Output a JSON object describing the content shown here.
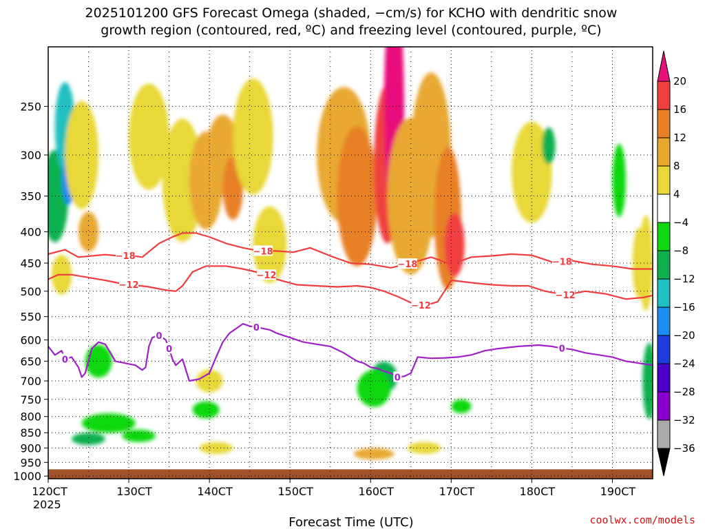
{
  "chart_data": {
    "type": "heatmap",
    "title_line1": "2025101200 GFS Forecast Omega (shaded, −cm/s) for KCHO with dendritic snow",
    "title_line2": "growth region (contoured, red, ºC) and freezing level (contoured, purple, ºC)",
    "xlabel": "Forecast Time (UTC)",
    "credit": "coolwx.com/models",
    "x_ticks": [
      {
        "hour": 0,
        "label": "120CT"
      },
      {
        "hour": 24,
        "label": "130CT"
      },
      {
        "hour": 48,
        "label": "140CT"
      },
      {
        "hour": 72,
        "label": "150CT"
      },
      {
        "hour": 96,
        "label": "160CT"
      },
      {
        "hour": 120,
        "label": "170CT"
      },
      {
        "hour": 144,
        "label": "180CT"
      },
      {
        "hour": 168,
        "label": "190CT"
      }
    ],
    "x_year": "2025",
    "x_range_hours": [
      0,
      180
    ],
    "y_range_hpa": [
      1010,
      200
    ],
    "y_ticks": [
      250,
      300,
      350,
      400,
      450,
      500,
      550,
      600,
      650,
      700,
      750,
      800,
      850,
      900,
      950,
      1000
    ],
    "colorbar": {
      "levels": [
        -36,
        -32,
        -28,
        -24,
        -20,
        -16,
        -12,
        -8,
        -4,
        4,
        8,
        12,
        16,
        20
      ],
      "labels": [
        "20",
        "16",
        "12",
        "8",
        "4",
        "−4",
        "−8",
        "−12",
        "−16",
        "−20",
        "−24",
        "−28",
        "−32",
        "−36"
      ],
      "colors": [
        "#000000",
        "#aaaaaa",
        "#8800cc",
        "#4a00c8",
        "#1c3cdc",
        "#1c8cf0",
        "#20c0c0",
        "#10b050",
        "#10d810",
        "#ffffff",
        "#e8d838",
        "#e8a830",
        "#e88028",
        "#f04040",
        "#e8107a"
      ]
    },
    "ground": {
      "from_hpa": 975,
      "to_hpa": 1010,
      "color": "#a0522d"
    },
    "omega_blobs": [
      {
        "x": 2,
        "p": 350,
        "w": 4,
        "h": 120,
        "v": -10
      },
      {
        "x": 5,
        "p": 270,
        "w": 3,
        "h": 90,
        "v": -14
      },
      {
        "x": 6,
        "p": 330,
        "w": 2,
        "h": 60,
        "v": -18
      },
      {
        "x": 4,
        "p": 470,
        "w": 3,
        "h": 70,
        "v": 6
      },
      {
        "x": 10,
        "p": 300,
        "w": 5,
        "h": 120,
        "v": 6
      },
      {
        "x": 12,
        "p": 400,
        "w": 3,
        "h": 60,
        "v": 10
      },
      {
        "x": 15,
        "p": 650,
        "w": 4,
        "h": 80,
        "v": -6
      },
      {
        "x": 12,
        "p": 870,
        "w": 5,
        "h": 40,
        "v": -10
      },
      {
        "x": 18,
        "p": 820,
        "w": 8,
        "h": 60,
        "v": -6
      },
      {
        "x": 27,
        "p": 860,
        "w": 5,
        "h": 40,
        "v": -8
      },
      {
        "x": 30,
        "p": 280,
        "w": 6,
        "h": 110,
        "v": 5
      },
      {
        "x": 40,
        "p": 330,
        "w": 6,
        "h": 150,
        "v": 6
      },
      {
        "x": 47,
        "p": 330,
        "w": 5,
        "h": 120,
        "v": 10
      },
      {
        "x": 52,
        "p": 300,
        "w": 5,
        "h": 90,
        "v": 8
      },
      {
        "x": 55,
        "p": 340,
        "w": 3,
        "h": 80,
        "v": 14
      },
      {
        "x": 48,
        "p": 700,
        "w": 4,
        "h": 60,
        "v": 6
      },
      {
        "x": 47,
        "p": 780,
        "w": 4,
        "h": 50,
        "v": -6
      },
      {
        "x": 50,
        "p": 900,
        "w": 5,
        "h": 40,
        "v": 6
      },
      {
        "x": 61,
        "p": 280,
        "w": 6,
        "h": 120,
        "v": 5
      },
      {
        "x": 66,
        "p": 420,
        "w": 5,
        "h": 120,
        "v": 5
      },
      {
        "x": 88,
        "p": 300,
        "w": 8,
        "h": 150,
        "v": 8
      },
      {
        "x": 92,
        "p": 350,
        "w": 6,
        "h": 180,
        "v": 12
      },
      {
        "x": 101,
        "p": 310,
        "w": 4,
        "h": 180,
        "v": 18
      },
      {
        "x": 103,
        "p": 250,
        "w": 3,
        "h": 200,
        "v": 22
      },
      {
        "x": 108,
        "p": 350,
        "w": 7,
        "h": 200,
        "v": 10
      },
      {
        "x": 114,
        "p": 300,
        "w": 6,
        "h": 180,
        "v": 10
      },
      {
        "x": 119,
        "p": 380,
        "w": 4,
        "h": 200,
        "v": 12
      },
      {
        "x": 121,
        "p": 420,
        "w": 3,
        "h": 100,
        "v": 18
      },
      {
        "x": 100,
        "p": 690,
        "w": 4,
        "h": 80,
        "v": -10
      },
      {
        "x": 97,
        "p": 720,
        "w": 5,
        "h": 100,
        "v": -6
      },
      {
        "x": 97,
        "p": 920,
        "w": 6,
        "h": 40,
        "v": 8
      },
      {
        "x": 112,
        "p": 900,
        "w": 5,
        "h": 40,
        "v": 6
      },
      {
        "x": 123,
        "p": 770,
        "w": 3,
        "h": 40,
        "v": -6
      },
      {
        "x": 144,
        "p": 320,
        "w": 6,
        "h": 120,
        "v": 5
      },
      {
        "x": 149,
        "p": 290,
        "w": 2,
        "h": 40,
        "v": -10
      },
      {
        "x": 170,
        "p": 330,
        "w": 2,
        "h": 90,
        "v": -6
      },
      {
        "x": 176,
        "p": 450,
        "w": 2,
        "h": 120,
        "v": 6
      },
      {
        "x": 178,
        "p": 450,
        "w": 2,
        "h": 160,
        "v": 6
      },
      {
        "x": 179,
        "p": 700,
        "w": 2,
        "h": 200,
        "v": -12
      }
    ],
    "contours": [
      {
        "name": "dgz-minus-18",
        "value": -18,
        "color": "#f03c3c",
        "hours": [
          0,
          5,
          9,
          13,
          17,
          21,
          24,
          28,
          33,
          37,
          40,
          44,
          48,
          53,
          58,
          63,
          68,
          73,
          78,
          84,
          90,
          96,
          102,
          108,
          114,
          120,
          126,
          132,
          138,
          144,
          150,
          156,
          162,
          168,
          174,
          180
        ],
        "hpa": [
          435,
          428,
          440,
          438,
          436,
          438,
          437,
          440,
          418,
          408,
          402,
          402,
          408,
          418,
          425,
          430,
          430,
          432,
          425,
          438,
          450,
          452,
          458,
          450,
          440,
          452,
          440,
          438,
          435,
          437,
          448,
          446,
          452,
          455,
          460,
          460
        ],
        "labels": [
          {
            "hour": 23,
            "text": "−18"
          },
          {
            "hour": 64,
            "text": "−18"
          },
          {
            "hour": 107,
            "text": "−18"
          },
          {
            "hour": 153,
            "text": "−18"
          }
        ]
      },
      {
        "name": "dgz-minus-12",
        "value": -12,
        "color": "#f03c3c",
        "hours": [
          0,
          3,
          7,
          12,
          17,
          21,
          25,
          30,
          35,
          38,
          40,
          43,
          47,
          53,
          58,
          64,
          68,
          74,
          80,
          86,
          92,
          96,
          100,
          104,
          108,
          112,
          116,
          119,
          120,
          123,
          127,
          132,
          138,
          143,
          148,
          154,
          160,
          166,
          172,
          177,
          180
        ],
        "hpa": [
          478,
          470,
          470,
          475,
          480,
          485,
          488,
          492,
          498,
          500,
          490,
          465,
          455,
          455,
          460,
          468,
          478,
          488,
          490,
          492,
          490,
          493,
          500,
          510,
          522,
          528,
          520,
          490,
          480,
          482,
          485,
          488,
          490,
          490,
          500,
          507,
          500,
          505,
          515,
          512,
          508
        ],
        "labels": [
          {
            "hour": 24,
            "text": "−12"
          },
          {
            "hour": 65,
            "text": "−12"
          },
          {
            "hour": 111,
            "text": "−12"
          },
          {
            "hour": 154,
            "text": "−12"
          }
        ]
      },
      {
        "name": "freezing-level-0",
        "value": 0,
        "color": "#a020c8",
        "hours": [
          0,
          2,
          4,
          5,
          7,
          9,
          10,
          11,
          13,
          15,
          17,
          20,
          23,
          26,
          28,
          29,
          30,
          31,
          33,
          35,
          36,
          37,
          38,
          40,
          42,
          45,
          48,
          50,
          52,
          54,
          56,
          58,
          60,
          62,
          64,
          66,
          68,
          70,
          72,
          74,
          76,
          80,
          84,
          88,
          90,
          92,
          94,
          96,
          98,
          100,
          102,
          104,
          106,
          108,
          110,
          114,
          118,
          122,
          126,
          130,
          134,
          140,
          146,
          150,
          152,
          156,
          160,
          164,
          168,
          172,
          176,
          180
        ],
        "hpa": [
          615,
          635,
          625,
          645,
          640,
          665,
          690,
          680,
          620,
          605,
          610,
          650,
          655,
          660,
          672,
          665,
          615,
          595,
          590,
          600,
          620,
          645,
          660,
          645,
          700,
          695,
          680,
          640,
          605,
          585,
          575,
          565,
          570,
          572,
          575,
          578,
          585,
          590,
          595,
          600,
          605,
          610,
          615,
          630,
          640,
          650,
          655,
          665,
          668,
          675,
          680,
          690,
          688,
          680,
          640,
          643,
          642,
          640,
          635,
          625,
          620,
          615,
          612,
          615,
          618,
          622,
          630,
          635,
          640,
          650,
          655,
          660
        ],
        "labels": [
          {
            "hour": 5,
            "text": "0"
          },
          {
            "hour": 33,
            "text": "0"
          },
          {
            "hour": 36,
            "text": "0"
          },
          {
            "hour": 62,
            "text": "0"
          },
          {
            "hour": 104,
            "text": "0"
          },
          {
            "hour": 153,
            "text": "0"
          }
        ]
      }
    ]
  }
}
